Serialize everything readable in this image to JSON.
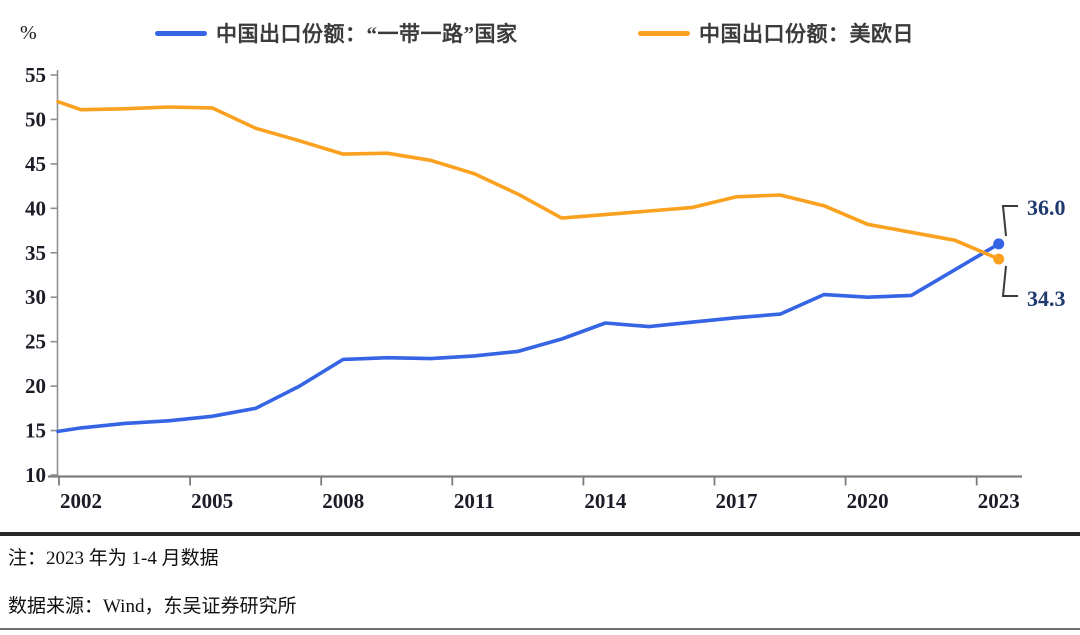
{
  "chart_data": {
    "type": "line",
    "unit": "%",
    "x": [
      2001,
      2002,
      2003,
      2004,
      2005,
      2006,
      2007,
      2008,
      2009,
      2010,
      2011,
      2012,
      2013,
      2014,
      2015,
      2016,
      2017,
      2018,
      2019,
      2020,
      2021,
      2022,
      2023
    ],
    "series": [
      {
        "name": "中国出口份额：“一带一路”国家",
        "color": "#3564e4",
        "values": [
          14.9,
          15.3,
          15.8,
          16.1,
          16.6,
          17.5,
          20.0,
          23.0,
          23.2,
          23.1,
          23.4,
          23.9,
          25.3,
          27.1,
          26.7,
          27.2,
          27.7,
          28.1,
          30.3,
          30.0,
          30.2,
          33.1,
          36.0
        ]
      },
      {
        "name": "中国出口份额：美欧日",
        "color": "#faa11f",
        "values": [
          52.0,
          51.1,
          51.2,
          51.4,
          51.3,
          49.0,
          47.6,
          46.1,
          46.2,
          45.4,
          43.9,
          41.6,
          38.9,
          39.3,
          39.7,
          40.1,
          41.3,
          41.5,
          40.3,
          38.2,
          37.3,
          36.4,
          34.3
        ]
      }
    ],
    "ylim": [
      10,
      55
    ],
    "y_ticks": [
      55,
      50,
      45,
      40,
      35,
      30,
      25,
      20,
      15,
      10
    ],
    "x_ticks": [
      2002,
      2005,
      2008,
      2011,
      2014,
      2017,
      2020,
      2023
    ],
    "end_labels": [
      {
        "series": 0,
        "text": "36.0"
      },
      {
        "series": 1,
        "text": "34.3"
      }
    ],
    "legend_position": "top",
    "grid": false,
    "title": "",
    "xlabel": "",
    "ylabel": "%"
  },
  "footer": {
    "note": "注：2023 年为 1-4 月数据",
    "source": "数据来源：Wind，东吴证券研究所"
  }
}
